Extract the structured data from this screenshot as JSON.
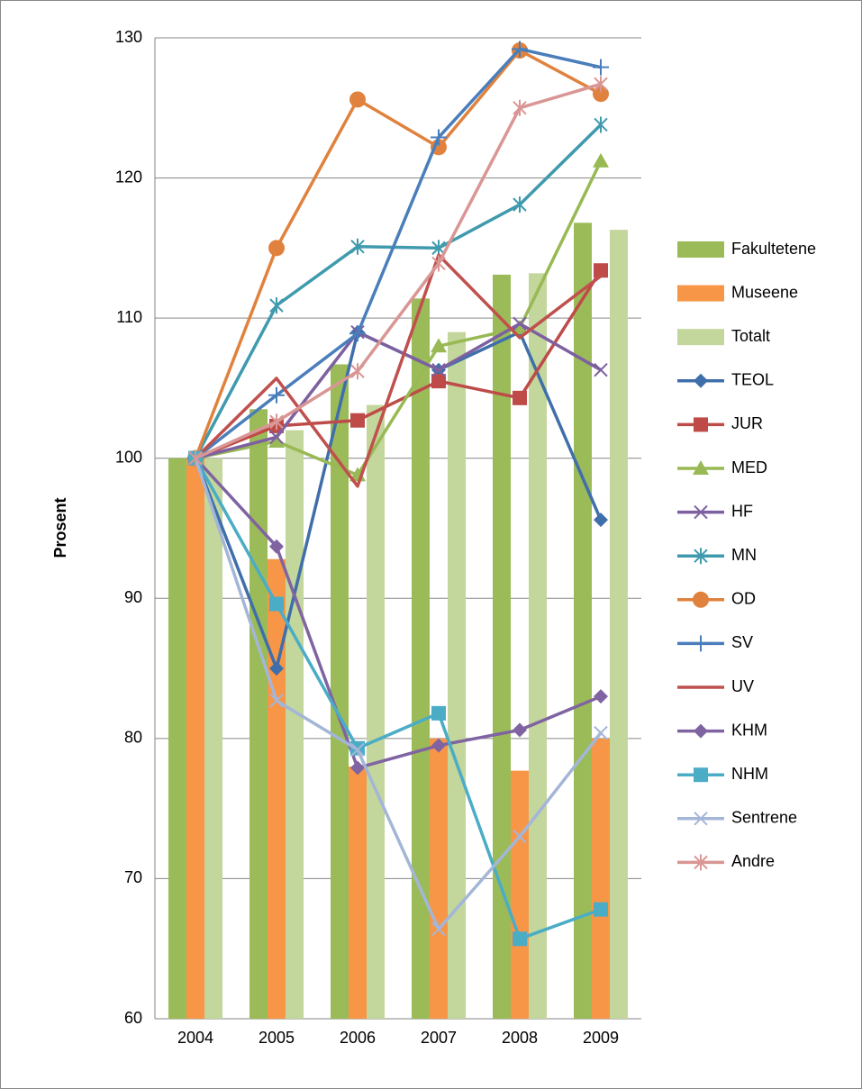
{
  "chart_data": {
    "type": "bar-line",
    "y_axis_label": "Prosent",
    "categories": [
      "2004",
      "2005",
      "2006",
      "2007",
      "2008",
      "2009"
    ],
    "ylim": [
      60,
      130
    ],
    "yticks": [
      60,
      70,
      80,
      90,
      100,
      110,
      120,
      130
    ],
    "grid": true,
    "legend": "right",
    "bar_series": [
      {
        "name": "Fakultetene",
        "color": "#9bbb59",
        "values": [
          100,
          103.5,
          106.7,
          111.4,
          113.1,
          116.8
        ]
      },
      {
        "name": "Museene",
        "color": "#f79646",
        "values": [
          100,
          92.8,
          78,
          80,
          77.7,
          80
        ]
      },
      {
        "name": "Totalt",
        "color": "#c3d69b",
        "values": [
          100,
          102,
          103.8,
          109,
          113.2,
          116.3
        ]
      }
    ],
    "line_series": [
      {
        "name": "TEOL",
        "color": "#3f6faa",
        "marker": "diamond",
        "values": [
          100,
          85,
          109,
          106.3,
          109,
          95.6
        ]
      },
      {
        "name": "JUR",
        "color": "#be4b48",
        "marker": "square",
        "values": [
          100,
          102.3,
          102.7,
          105.5,
          104.3,
          113.4
        ]
      },
      {
        "name": "MED",
        "color": "#98b954",
        "marker": "triangle",
        "values": [
          100,
          101.2,
          98.8,
          108,
          109.3,
          121.2
        ]
      },
      {
        "name": "HF",
        "color": "#7d60a0",
        "marker": "x",
        "values": [
          100,
          101.5,
          109,
          106.3,
          109.6,
          106.3
        ]
      },
      {
        "name": "MN",
        "color": "#3f9aae",
        "marker": "asterisk",
        "values": [
          100,
          110.9,
          115.1,
          115,
          118.1,
          123.8
        ]
      },
      {
        "name": "OD",
        "color": "#e0823d",
        "marker": "circle",
        "values": [
          100,
          115,
          125.6,
          122.2,
          129.1,
          126
        ]
      },
      {
        "name": "SV",
        "color": "#4a7ebb",
        "marker": "plus",
        "values": [
          100,
          104.5,
          108.9,
          122.9,
          129.2,
          127.9
        ]
      },
      {
        "name": "UV",
        "color": "#c0504d",
        "marker": "none",
        "values": [
          100,
          105.7,
          98,
          114.5,
          108.6,
          113
        ]
      },
      {
        "name": "KHM",
        "color": "#8064a2",
        "marker": "diamond",
        "values": [
          100,
          93.7,
          77.9,
          79.5,
          80.6,
          83
        ]
      },
      {
        "name": "NHM",
        "color": "#4bacc6",
        "marker": "square",
        "values": [
          100,
          89.6,
          79.3,
          81.8,
          65.7,
          67.8
        ]
      },
      {
        "name": "Sentrene",
        "color": "#a4b6d8",
        "marker": "x",
        "values": [
          100,
          82.7,
          79.2,
          66.4,
          73,
          80.4
        ]
      },
      {
        "name": "Andre",
        "color": "#d99694",
        "marker": "asterisk",
        "values": [
          100,
          102.6,
          106.2,
          113.9,
          125,
          126.7
        ]
      }
    ]
  }
}
